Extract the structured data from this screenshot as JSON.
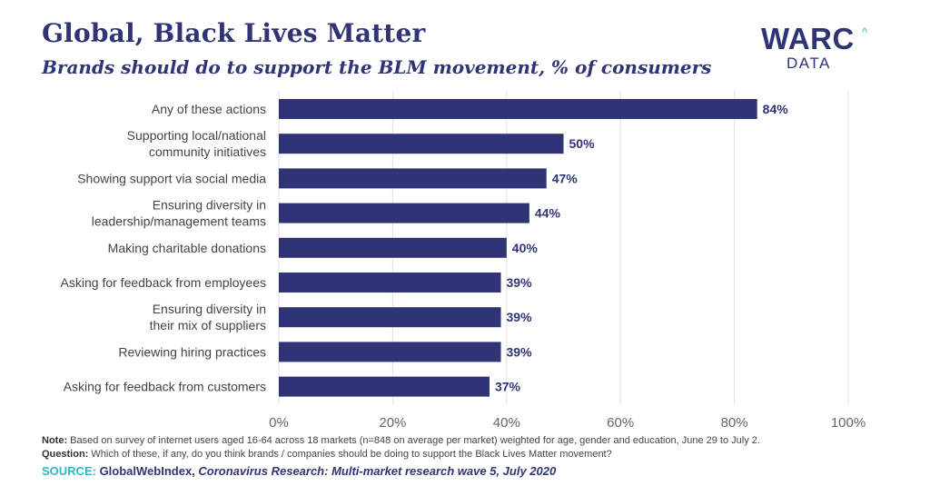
{
  "header": {
    "title": "Global, Black Lives Matter",
    "subtitle": "Brands should do to support the BLM movement, % of consumers"
  },
  "logo": {
    "main": "WARC",
    "sub": "DATA",
    "caret": "^"
  },
  "chart_data": {
    "type": "bar",
    "orientation": "horizontal",
    "title": "Brands should do to support the BLM movement, % of consumers",
    "categories": [
      [
        "Any of these actions"
      ],
      [
        "Supporting local/national",
        "community initiatives"
      ],
      [
        "Showing support via social media"
      ],
      [
        "Ensuring diversity in",
        "leadership/management teams"
      ],
      [
        "Making charitable donations"
      ],
      [
        "Asking for feedback from employees"
      ],
      [
        "Ensuring diversity in",
        "their mix of suppliers"
      ],
      [
        "Reviewing hiring practices"
      ],
      [
        "Asking for feedback from customers"
      ]
    ],
    "values": [
      84,
      50,
      47,
      44,
      40,
      39,
      39,
      39,
      37
    ],
    "value_labels": [
      "84%",
      "50%",
      "47%",
      "44%",
      "40%",
      "39%",
      "39%",
      "39%",
      "37%"
    ],
    "xlim": [
      0,
      100
    ],
    "xticks": [
      0,
      20,
      40,
      60,
      80,
      100
    ],
    "xtick_labels": [
      "0%",
      "20%",
      "40%",
      "60%",
      "80%",
      "100%"
    ],
    "grid": true,
    "bar_color": "#2e3475",
    "label_color": "#444444",
    "value_color": "#2e3475"
  },
  "footer": {
    "note_label": "Note:",
    "note_text": " Based on survey of internet users aged 16-64 across 18 markets (n=848 on average per market) weighted for age, gender and education, June 29 to July 2.",
    "question_label": "Question:",
    "question_text": " Which of these, if any, do you think brands / companies should be doing to support the Black Lives Matter movement?",
    "source_label": "SOURCE:",
    "source_org": " GlobalWebIndex, ",
    "source_title": "Coronavirus Research: Multi-market research wave 5, July 2020"
  },
  "colors": {
    "brand": "#2e3475",
    "accent": "#2fb9c7",
    "grid": "#e2e2e2"
  }
}
